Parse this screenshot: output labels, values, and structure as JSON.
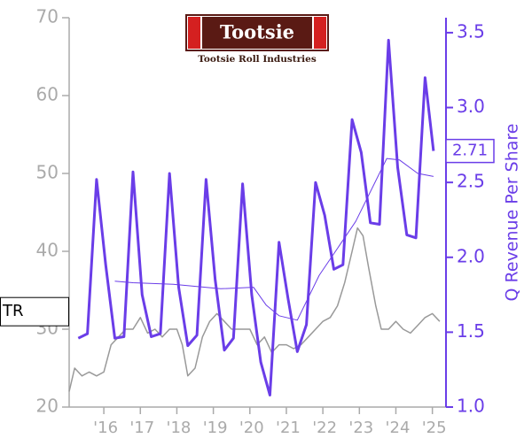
{
  "chart_data": {
    "type": "line",
    "title": "Tootsie",
    "subtitle": "Tootsie Roll Industries",
    "ticker": "TR",
    "y2label": "Q Revenue Per Share",
    "xlim": [
      2015.05,
      2025.3
    ],
    "xticks": [
      {
        "value": 2016,
        "label": "'16"
      },
      {
        "value": 2017,
        "label": "'17"
      },
      {
        "value": 2018,
        "label": "'18"
      },
      {
        "value": 2019,
        "label": "'19"
      },
      {
        "value": 2020,
        "label": "'20"
      },
      {
        "value": 2021,
        "label": "'21"
      },
      {
        "value": 2022,
        "label": "'22"
      },
      {
        "value": 2023,
        "label": "'23"
      },
      {
        "value": 2024,
        "label": "'24"
      },
      {
        "value": 2025,
        "label": "'25"
      }
    ],
    "ylim": [
      20,
      70
    ],
    "yticks": [
      20,
      30,
      40,
      50,
      60,
      70
    ],
    "y2lim": [
      1.0,
      3.6
    ],
    "y2ticks": [
      {
        "value": 1,
        "label": "1.0"
      },
      1.5,
      {
        "value": 2,
        "label": "2.0"
      },
      2.5,
      {
        "value": 3,
        "label": "3.0"
      },
      3.5
    ],
    "series": [
      {
        "color": "#6a3de8",
        "axis": "y2",
        "width": 3,
        "x": [
          2015.3,
          2015.55,
          2015.8,
          2016.05,
          2016.3,
          2016.55,
          2016.8,
          2017.05,
          2017.3,
          2017.55,
          2017.8,
          2018.05,
          2018.3,
          2018.55,
          2018.8,
          2019.05,
          2019.3,
          2019.55,
          2019.8,
          2020.05,
          2020.3,
          2020.55,
          2020.8,
          2021.05,
          2021.3,
          2021.55,
          2021.8,
          2022.05,
          2022.3,
          2022.55,
          2022.8,
          2023.05,
          2023.3,
          2023.55,
          2023.8,
          2024.05,
          2024.3,
          2024.55,
          2024.8,
          2025.03
        ],
        "values": [
          1.46,
          1.49,
          2.52,
          1.95,
          1.46,
          1.47,
          2.57,
          1.75,
          1.47,
          1.49,
          2.56,
          1.8,
          1.41,
          1.48,
          2.52,
          1.85,
          1.38,
          1.46,
          2.49,
          1.75,
          1.3,
          1.08,
          2.1,
          1.72,
          1.37,
          1.55,
          2.5,
          2.28,
          1.92,
          1.95,
          2.92,
          2.7,
          2.23,
          2.22,
          3.45,
          2.6,
          2.15,
          2.13,
          3.2,
          2.71
        ]
      },
      {
        "color": "#6a3de8",
        "axis": "y2",
        "width": 1,
        "x": [
          2016.3,
          2016.8,
          2017.9,
          2019.2,
          2020.1,
          2020.45,
          2020.8,
          2021.3,
          2021.9,
          2022.9,
          2023.75,
          2024.1,
          2024.6,
          2025.03
        ],
        "values": [
          1.84,
          1.83,
          1.82,
          1.79,
          1.8,
          1.68,
          1.61,
          1.58,
          1.88,
          2.24,
          2.66,
          2.65,
          2.56,
          2.54
        ]
      },
      {
        "color": "#999999",
        "axis": "y",
        "width": 1.5,
        "x": [
          2015.05,
          2015.2,
          2015.4,
          2015.6,
          2015.8,
          2016.0,
          2016.2,
          2016.4,
          2016.6,
          2016.8,
          2017.0,
          2017.2,
          2017.4,
          2017.6,
          2017.8,
          2018.0,
          2018.15,
          2018.3,
          2018.5,
          2018.7,
          2018.9,
          2019.1,
          2019.3,
          2019.5,
          2019.8,
          2020.0,
          2020.2,
          2020.4,
          2020.6,
          2020.8,
          2021.0,
          2021.2,
          2021.4,
          2021.6,
          2021.8,
          2022.0,
          2022.2,
          2022.4,
          2022.6,
          2022.8,
          2022.95,
          2023.1,
          2023.25,
          2023.45,
          2023.6,
          2023.8,
          2024.0,
          2024.2,
          2024.4,
          2024.6,
          2024.8,
          2025.0,
          2025.2
        ],
        "values": [
          22,
          25,
          24,
          24.5,
          24,
          24.5,
          28,
          29,
          30,
          30,
          31.5,
          29.5,
          30,
          29,
          30,
          30,
          28,
          24,
          25,
          29,
          31,
          32,
          31,
          30,
          30,
          30,
          28,
          29,
          27,
          28,
          28,
          27.5,
          28,
          29,
          30,
          31,
          31.5,
          33,
          36,
          40,
          43,
          42,
          38,
          33,
          30,
          30,
          31,
          30,
          29.5,
          30.5,
          31.5,
          32,
          31
        ]
      }
    ]
  }
}
